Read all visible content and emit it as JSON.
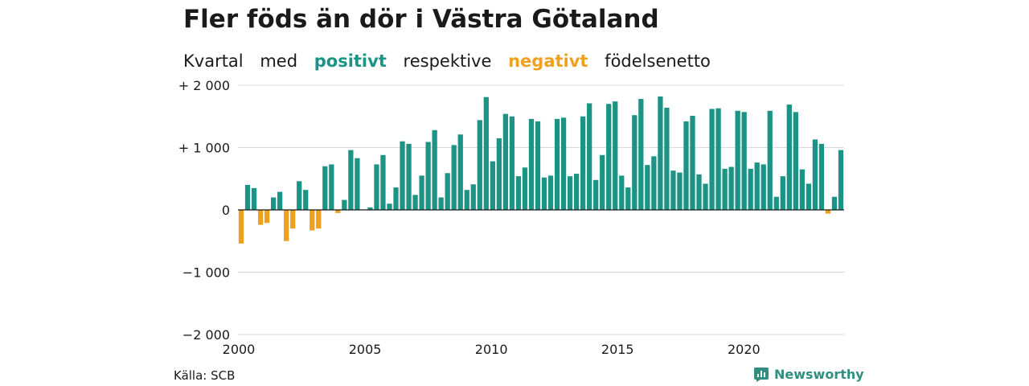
{
  "header": {
    "title": "Fler föds än dör i Västra Götaland",
    "subtitle_parts": [
      "Kvartal",
      "med",
      "positivt",
      "respektive",
      "negativt",
      "födelsenetto"
    ]
  },
  "footer": {
    "source": "Källa: SCB",
    "brand": "Newsworthy"
  },
  "colors": {
    "positive": "#1b9385",
    "negative": "#f0a020",
    "grid": "#d8d8d8",
    "brand": "#2f8f80"
  },
  "chart_data": {
    "type": "bar",
    "title": "Fler föds än dör i Västra Götaland",
    "subtitle": "Kvartal med positivt respektive negativt födelsenetto",
    "xlabel": "",
    "ylabel": "",
    "ylim": [
      -2000,
      2000
    ],
    "xlim": [
      2000,
      2024
    ],
    "y_ticks": [
      2000,
      1000,
      0,
      -1000,
      -2000
    ],
    "y_tick_labels": [
      "+ 2 000",
      "+ 1 000",
      "0",
      "−1 000",
      "−2 000"
    ],
    "x_ticks": [
      2000,
      2005,
      2010,
      2015,
      2020
    ],
    "x_tick_labels": [
      "2000",
      "2005",
      "2010",
      "2015",
      "2020"
    ],
    "grid": true,
    "quarters_start": "2000 Q1",
    "values": [
      -540,
      400,
      350,
      -240,
      -210,
      200,
      290,
      -500,
      -300,
      460,
      320,
      -330,
      -300,
      700,
      730,
      -50,
      160,
      960,
      830,
      0,
      40,
      730,
      880,
      100,
      360,
      1100,
      1060,
      240,
      550,
      1090,
      1280,
      200,
      590,
      1040,
      1210,
      320,
      410,
      1440,
      1810,
      780,
      1150,
      1540,
      1500,
      540,
      680,
      1460,
      1420,
      520,
      550,
      1460,
      1480,
      540,
      580,
      1500,
      1710,
      480,
      880,
      1700,
      1740,
      550,
      360,
      1520,
      1780,
      720,
      860,
      1820,
      1640,
      630,
      600,
      1420,
      1510,
      570,
      420,
      1620,
      1630,
      660,
      690,
      1590,
      1570,
      660,
      760,
      730,
      1590,
      210,
      540,
      1690,
      1570,
      650,
      420,
      1130,
      1060,
      -60,
      210,
      960
    ]
  }
}
